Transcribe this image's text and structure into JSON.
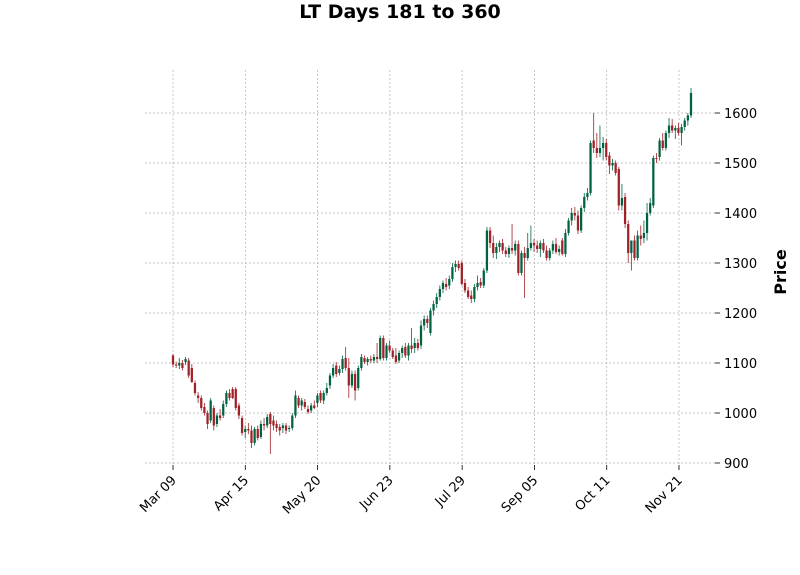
{
  "chart_data": {
    "type": "candlestick",
    "title": "LT Days 181 to 360",
    "ylabel": "Price",
    "xlabel": "",
    "ylim": [
      885,
      1690
    ],
    "yticks": [
      900,
      1000,
      1100,
      1200,
      1300,
      1400,
      1500,
      1600
    ],
    "xticks": [
      "Mar 09",
      "Apr 15",
      "May 20",
      "Jun 23",
      "Jul 29",
      "Sep 05",
      "Oct 11",
      "Nov 21"
    ],
    "grid": true,
    "up_color": "#006340",
    "down_color": "#a02128",
    "candles": [
      {
        "o": 1115,
        "h": 1118,
        "l": 1092,
        "c": 1097
      },
      {
        "o": 1097,
        "h": 1103,
        "l": 1090,
        "c": 1095
      },
      {
        "o": 1095,
        "h": 1110,
        "l": 1088,
        "c": 1100
      },
      {
        "o": 1100,
        "h": 1106,
        "l": 1085,
        "c": 1090
      },
      {
        "o": 1102,
        "h": 1112,
        "l": 1096,
        "c": 1108
      },
      {
        "o": 1105,
        "h": 1110,
        "l": 1070,
        "c": 1075
      },
      {
        "o": 1090,
        "h": 1098,
        "l": 1060,
        "c": 1062
      },
      {
        "o": 1060,
        "h": 1065,
        "l": 1035,
        "c": 1040
      },
      {
        "o": 1035,
        "h": 1042,
        "l": 1020,
        "c": 1030
      },
      {
        "o": 1030,
        "h": 1035,
        "l": 1005,
        "c": 1010
      },
      {
        "o": 1012,
        "h": 1020,
        "l": 995,
        "c": 1000
      },
      {
        "o": 1000,
        "h": 1005,
        "l": 968,
        "c": 978
      },
      {
        "o": 985,
        "h": 1030,
        "l": 980,
        "c": 1025
      },
      {
        "o": 1010,
        "h": 1015,
        "l": 965,
        "c": 975
      },
      {
        "o": 978,
        "h": 1000,
        "l": 972,
        "c": 995
      },
      {
        "o": 995,
        "h": 1008,
        "l": 985,
        "c": 990
      },
      {
        "o": 995,
        "h": 1025,
        "l": 990,
        "c": 1018
      },
      {
        "o": 1018,
        "h": 1045,
        "l": 1012,
        "c": 1040
      },
      {
        "o": 1040,
        "h": 1048,
        "l": 1025,
        "c": 1030
      },
      {
        "o": 1048,
        "h": 1052,
        "l": 1028,
        "c": 1030
      },
      {
        "o": 1048,
        "h": 1052,
        "l": 1005,
        "c": 1010
      },
      {
        "o": 1015,
        "h": 1020,
        "l": 988,
        "c": 995
      },
      {
        "o": 990,
        "h": 995,
        "l": 955,
        "c": 960
      },
      {
        "o": 962,
        "h": 975,
        "l": 950,
        "c": 968
      },
      {
        "o": 968,
        "h": 980,
        "l": 958,
        "c": 965
      },
      {
        "o": 965,
        "h": 975,
        "l": 930,
        "c": 940
      },
      {
        "o": 940,
        "h": 972,
        "l": 935,
        "c": 968
      },
      {
        "o": 968,
        "h": 975,
        "l": 945,
        "c": 950
      },
      {
        "o": 952,
        "h": 985,
        "l": 948,
        "c": 978
      },
      {
        "o": 978,
        "h": 990,
        "l": 965,
        "c": 975
      },
      {
        "o": 975,
        "h": 998,
        "l": 970,
        "c": 992
      },
      {
        "o": 998,
        "h": 1002,
        "l": 918,
        "c": 978
      },
      {
        "o": 985,
        "h": 995,
        "l": 965,
        "c": 975
      },
      {
        "o": 978,
        "h": 985,
        "l": 962,
        "c": 970
      },
      {
        "o": 972,
        "h": 978,
        "l": 955,
        "c": 965
      },
      {
        "o": 970,
        "h": 980,
        "l": 960,
        "c": 975
      },
      {
        "o": 975,
        "h": 980,
        "l": 958,
        "c": 965
      },
      {
        "o": 968,
        "h": 975,
        "l": 962,
        "c": 970
      },
      {
        "o": 970,
        "h": 1000,
        "l": 965,
        "c": 995
      },
      {
        "o": 995,
        "h": 1045,
        "l": 990,
        "c": 1035
      },
      {
        "o": 1030,
        "h": 1035,
        "l": 1010,
        "c": 1015
      },
      {
        "o": 1015,
        "h": 1030,
        "l": 1005,
        "c": 1025
      },
      {
        "o": 1022,
        "h": 1028,
        "l": 1008,
        "c": 1012
      },
      {
        "o": 1008,
        "h": 1015,
        "l": 998,
        "c": 1002
      },
      {
        "o": 1005,
        "h": 1020,
        "l": 1000,
        "c": 1015
      },
      {
        "o": 1015,
        "h": 1025,
        "l": 1008,
        "c": 1010
      },
      {
        "o": 1020,
        "h": 1040,
        "l": 1012,
        "c": 1035
      },
      {
        "o": 1040,
        "h": 1045,
        "l": 1020,
        "c": 1025
      },
      {
        "o": 1025,
        "h": 1045,
        "l": 1018,
        "c": 1040
      },
      {
        "o": 1040,
        "h": 1060,
        "l": 1035,
        "c": 1050
      },
      {
        "o": 1055,
        "h": 1080,
        "l": 1048,
        "c": 1075
      },
      {
        "o": 1075,
        "h": 1098,
        "l": 1070,
        "c": 1090
      },
      {
        "o": 1095,
        "h": 1102,
        "l": 1072,
        "c": 1078
      },
      {
        "o": 1080,
        "h": 1095,
        "l": 1075,
        "c": 1088
      },
      {
        "o": 1088,
        "h": 1115,
        "l": 1080,
        "c": 1108
      },
      {
        "o": 1110,
        "h": 1132,
        "l": 1085,
        "c": 1090
      },
      {
        "o": 1090,
        "h": 1110,
        "l": 1030,
        "c": 1055
      },
      {
        "o": 1055,
        "h": 1085,
        "l": 1050,
        "c": 1078
      },
      {
        "o": 1078,
        "h": 1085,
        "l": 1025,
        "c": 1045
      },
      {
        "o": 1050,
        "h": 1095,
        "l": 1045,
        "c": 1090
      },
      {
        "o": 1090,
        "h": 1118,
        "l": 1085,
        "c": 1112
      },
      {
        "o": 1110,
        "h": 1115,
        "l": 1098,
        "c": 1102
      },
      {
        "o": 1102,
        "h": 1112,
        "l": 1095,
        "c": 1108
      },
      {
        "o": 1108,
        "h": 1115,
        "l": 1100,
        "c": 1105
      },
      {
        "o": 1105,
        "h": 1118,
        "l": 1100,
        "c": 1112
      },
      {
        "o": 1112,
        "h": 1140,
        "l": 1100,
        "c": 1108
      },
      {
        "o": 1108,
        "h": 1155,
        "l": 1105,
        "c": 1150
      },
      {
        "o": 1150,
        "h": 1155,
        "l": 1105,
        "c": 1110
      },
      {
        "o": 1110,
        "h": 1140,
        "l": 1105,
        "c": 1135
      },
      {
        "o": 1135,
        "h": 1145,
        "l": 1120,
        "c": 1125
      },
      {
        "o": 1125,
        "h": 1130,
        "l": 1108,
        "c": 1112
      },
      {
        "o": 1115,
        "h": 1130,
        "l": 1098,
        "c": 1102
      },
      {
        "o": 1105,
        "h": 1125,
        "l": 1100,
        "c": 1120
      },
      {
        "o": 1120,
        "h": 1135,
        "l": 1110,
        "c": 1130
      },
      {
        "o": 1132,
        "h": 1140,
        "l": 1110,
        "c": 1115
      },
      {
        "o": 1115,
        "h": 1140,
        "l": 1105,
        "c": 1135
      },
      {
        "o": 1135,
        "h": 1170,
        "l": 1120,
        "c": 1128
      },
      {
        "o": 1130,
        "h": 1150,
        "l": 1120,
        "c": 1140
      },
      {
        "o": 1140,
        "h": 1148,
        "l": 1125,
        "c": 1130
      },
      {
        "o": 1135,
        "h": 1185,
        "l": 1128,
        "c": 1175
      },
      {
        "o": 1175,
        "h": 1195,
        "l": 1165,
        "c": 1188
      },
      {
        "o": 1188,
        "h": 1195,
        "l": 1170,
        "c": 1180
      },
      {
        "o": 1160,
        "h": 1210,
        "l": 1155,
        "c": 1205
      },
      {
        "o": 1205,
        "h": 1225,
        "l": 1195,
        "c": 1218
      },
      {
        "o": 1218,
        "h": 1240,
        "l": 1210,
        "c": 1232
      },
      {
        "o": 1232,
        "h": 1255,
        "l": 1225,
        "c": 1248
      },
      {
        "o": 1248,
        "h": 1265,
        "l": 1240,
        "c": 1260
      },
      {
        "o": 1258,
        "h": 1270,
        "l": 1245,
        "c": 1252
      },
      {
        "o": 1255,
        "h": 1275,
        "l": 1248,
        "c": 1268
      },
      {
        "o": 1268,
        "h": 1300,
        "l": 1262,
        "c": 1292
      },
      {
        "o": 1292,
        "h": 1305,
        "l": 1282,
        "c": 1298
      },
      {
        "o": 1298,
        "h": 1305,
        "l": 1285,
        "c": 1290
      },
      {
        "o": 1300,
        "h": 1305,
        "l": 1255,
        "c": 1258
      },
      {
        "o": 1260,
        "h": 1268,
        "l": 1240,
        "c": 1245
      },
      {
        "o": 1245,
        "h": 1252,
        "l": 1228,
        "c": 1232
      },
      {
        "o": 1235,
        "h": 1245,
        "l": 1220,
        "c": 1228
      },
      {
        "o": 1228,
        "h": 1258,
        "l": 1222,
        "c": 1252
      },
      {
        "o": 1252,
        "h": 1275,
        "l": 1245,
        "c": 1260
      },
      {
        "o": 1262,
        "h": 1270,
        "l": 1250,
        "c": 1255
      },
      {
        "o": 1255,
        "h": 1290,
        "l": 1250,
        "c": 1285
      },
      {
        "o": 1285,
        "h": 1372,
        "l": 1280,
        "c": 1365
      },
      {
        "o": 1365,
        "h": 1372,
        "l": 1330,
        "c": 1340
      },
      {
        "o": 1340,
        "h": 1355,
        "l": 1310,
        "c": 1320
      },
      {
        "o": 1320,
        "h": 1340,
        "l": 1308,
        "c": 1332
      },
      {
        "o": 1332,
        "h": 1345,
        "l": 1322,
        "c": 1340
      },
      {
        "o": 1340,
        "h": 1348,
        "l": 1318,
        "c": 1325
      },
      {
        "o": 1325,
        "h": 1332,
        "l": 1312,
        "c": 1318
      },
      {
        "o": 1318,
        "h": 1335,
        "l": 1310,
        "c": 1330
      },
      {
        "o": 1330,
        "h": 1378,
        "l": 1318,
        "c": 1325
      },
      {
        "o": 1325,
        "h": 1345,
        "l": 1315,
        "c": 1338
      },
      {
        "o": 1338,
        "h": 1345,
        "l": 1275,
        "c": 1280
      },
      {
        "o": 1280,
        "h": 1325,
        "l": 1275,
        "c": 1320
      },
      {
        "o": 1320,
        "h": 1332,
        "l": 1230,
        "c": 1310
      },
      {
        "o": 1310,
        "h": 1360,
        "l": 1305,
        "c": 1330
      },
      {
        "o": 1330,
        "h": 1375,
        "l": 1325,
        "c": 1340
      },
      {
        "o": 1340,
        "h": 1348,
        "l": 1322,
        "c": 1335
      },
      {
        "o": 1335,
        "h": 1345,
        "l": 1320,
        "c": 1328
      },
      {
        "o": 1328,
        "h": 1345,
        "l": 1312,
        "c": 1340
      },
      {
        "o": 1340,
        "h": 1348,
        "l": 1320,
        "c": 1325
      },
      {
        "o": 1325,
        "h": 1335,
        "l": 1305,
        "c": 1310
      },
      {
        "o": 1310,
        "h": 1330,
        "l": 1305,
        "c": 1325
      },
      {
        "o": 1325,
        "h": 1345,
        "l": 1318,
        "c": 1338
      },
      {
        "o": 1338,
        "h": 1350,
        "l": 1318,
        "c": 1322
      },
      {
        "o": 1322,
        "h": 1335,
        "l": 1315,
        "c": 1328
      },
      {
        "o": 1345,
        "h": 1350,
        "l": 1315,
        "c": 1318
      },
      {
        "o": 1318,
        "h": 1368,
        "l": 1312,
        "c": 1360
      },
      {
        "o": 1360,
        "h": 1390,
        "l": 1355,
        "c": 1385
      },
      {
        "o": 1385,
        "h": 1410,
        "l": 1375,
        "c": 1400
      },
      {
        "o": 1400,
        "h": 1412,
        "l": 1385,
        "c": 1395
      },
      {
        "o": 1395,
        "h": 1405,
        "l": 1358,
        "c": 1365
      },
      {
        "o": 1365,
        "h": 1415,
        "l": 1360,
        "c": 1410
      },
      {
        "o": 1410,
        "h": 1440,
        "l": 1402,
        "c": 1432
      },
      {
        "o": 1432,
        "h": 1450,
        "l": 1425,
        "c": 1440
      },
      {
        "o": 1440,
        "h": 1545,
        "l": 1435,
        "c": 1540
      },
      {
        "o": 1545,
        "h": 1600,
        "l": 1520,
        "c": 1530
      },
      {
        "o": 1530,
        "h": 1560,
        "l": 1510,
        "c": 1520
      },
      {
        "o": 1520,
        "h": 1575,
        "l": 1512,
        "c": 1530
      },
      {
        "o": 1530,
        "h": 1552,
        "l": 1505,
        "c": 1540
      },
      {
        "o": 1540,
        "h": 1548,
        "l": 1505,
        "c": 1512
      },
      {
        "o": 1515,
        "h": 1522,
        "l": 1478,
        "c": 1495
      },
      {
        "o": 1495,
        "h": 1508,
        "l": 1485,
        "c": 1500
      },
      {
        "o": 1500,
        "h": 1505,
        "l": 1475,
        "c": 1480
      },
      {
        "o": 1488,
        "h": 1492,
        "l": 1405,
        "c": 1415
      },
      {
        "o": 1415,
        "h": 1458,
        "l": 1405,
        "c": 1430
      },
      {
        "o": 1432,
        "h": 1440,
        "l": 1370,
        "c": 1378
      },
      {
        "o": 1378,
        "h": 1385,
        "l": 1300,
        "c": 1320
      },
      {
        "o": 1320,
        "h": 1345,
        "l": 1285,
        "c": 1345
      },
      {
        "o": 1345,
        "h": 1355,
        "l": 1305,
        "c": 1310
      },
      {
        "o": 1310,
        "h": 1365,
        "l": 1305,
        "c": 1355
      },
      {
        "o": 1355,
        "h": 1375,
        "l": 1335,
        "c": 1348
      },
      {
        "o": 1350,
        "h": 1385,
        "l": 1340,
        "c": 1360
      },
      {
        "o": 1360,
        "h": 1420,
        "l": 1345,
        "c": 1400
      },
      {
        "o": 1400,
        "h": 1430,
        "l": 1395,
        "c": 1420
      },
      {
        "o": 1415,
        "h": 1515,
        "l": 1410,
        "c": 1510
      },
      {
        "o": 1510,
        "h": 1520,
        "l": 1500,
        "c": 1508
      },
      {
        "o": 1512,
        "h": 1550,
        "l": 1505,
        "c": 1545
      },
      {
        "o": 1545,
        "h": 1560,
        "l": 1525,
        "c": 1530
      },
      {
        "o": 1530,
        "h": 1565,
        "l": 1525,
        "c": 1560
      },
      {
        "o": 1560,
        "h": 1590,
        "l": 1550,
        "c": 1575
      },
      {
        "o": 1575,
        "h": 1588,
        "l": 1560,
        "c": 1565
      },
      {
        "o": 1565,
        "h": 1575,
        "l": 1548,
        "c": 1570
      },
      {
        "o": 1570,
        "h": 1580,
        "l": 1555,
        "c": 1560
      },
      {
        "o": 1560,
        "h": 1578,
        "l": 1535,
        "c": 1572
      },
      {
        "o": 1572,
        "h": 1590,
        "l": 1565,
        "c": 1585
      },
      {
        "o": 1585,
        "h": 1600,
        "l": 1575,
        "c": 1595
      },
      {
        "o": 1595,
        "h": 1650,
        "l": 1590,
        "c": 1640
      }
    ]
  }
}
